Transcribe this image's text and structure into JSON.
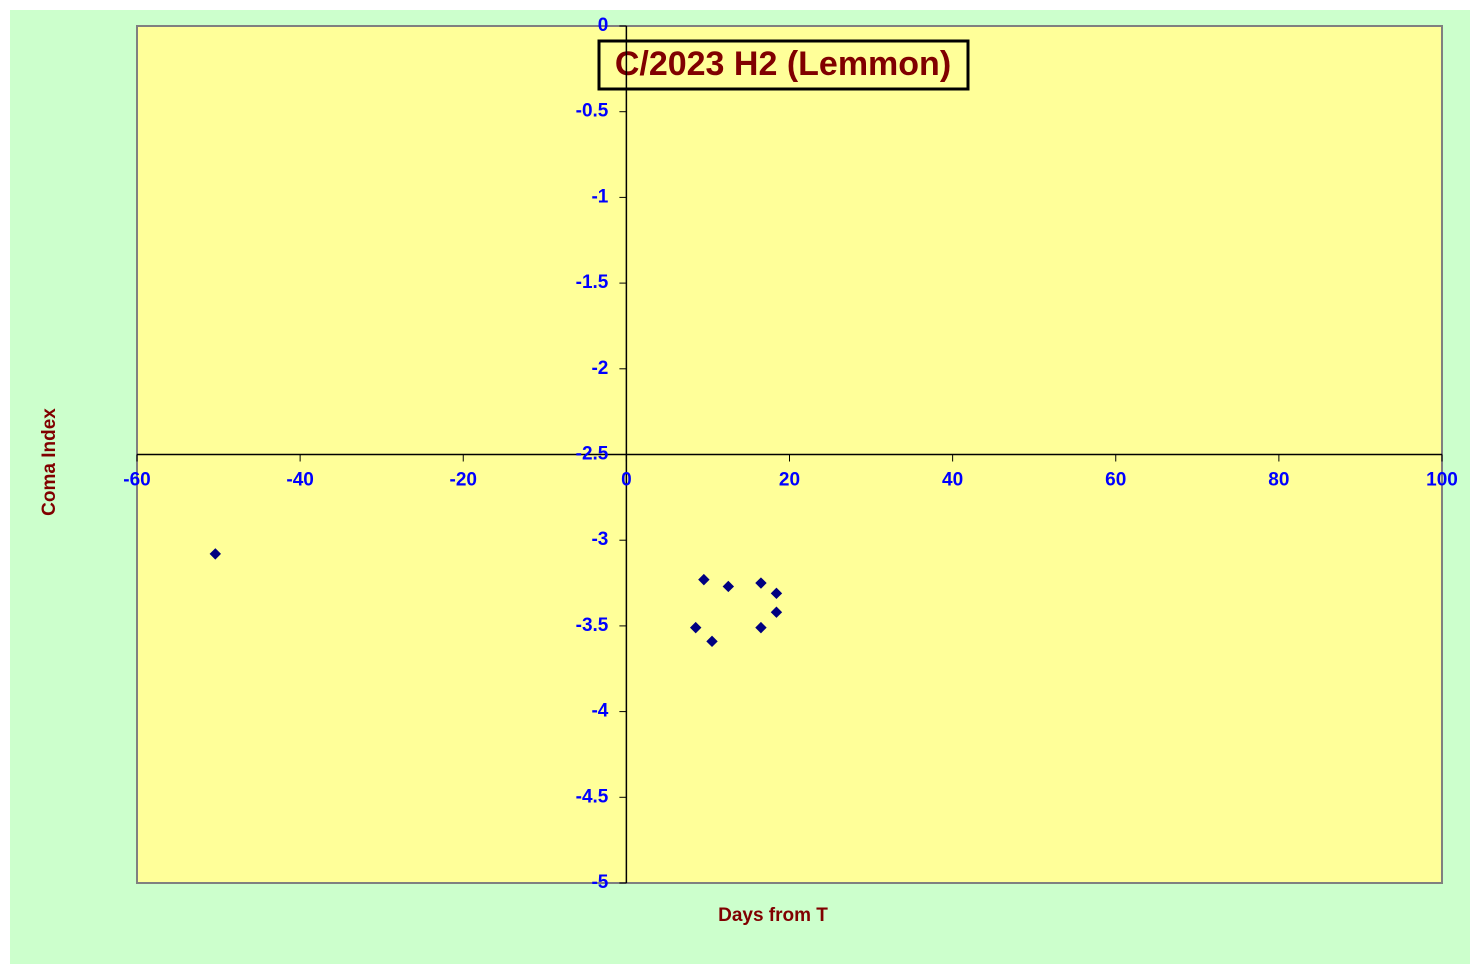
{
  "chart_data": {
    "type": "scatter",
    "title": "C/2023 H2 (Lemmon)",
    "x_label": "Days from T",
    "y_label": "Coma Index",
    "series": [
      {
        "color": "#000080",
        "x": [
          -50.4,
          9.5,
          12.5,
          16.5,
          18.4,
          18.4,
          16.5,
          8.5,
          10.5
        ],
        "values": [
          -3.08,
          -3.23,
          -3.27,
          -3.25,
          -3.31,
          -3.42,
          -3.51,
          -3.51,
          -3.59
        ]
      }
    ],
    "xlim": [
      -60,
      100
    ],
    "xticks": [
      -60,
      -40,
      -20,
      0,
      20,
      40,
      60,
      80,
      100
    ],
    "ylim": [
      -5,
      0
    ],
    "yticks": [
      0,
      -0.5,
      -1,
      -1.5,
      -2,
      -2.5,
      -3,
      -3.5,
      -4,
      -4.5,
      -5
    ],
    "x_axis_crosses_at": -2.5,
    "y_axis_crosses_at": 0
  }
}
